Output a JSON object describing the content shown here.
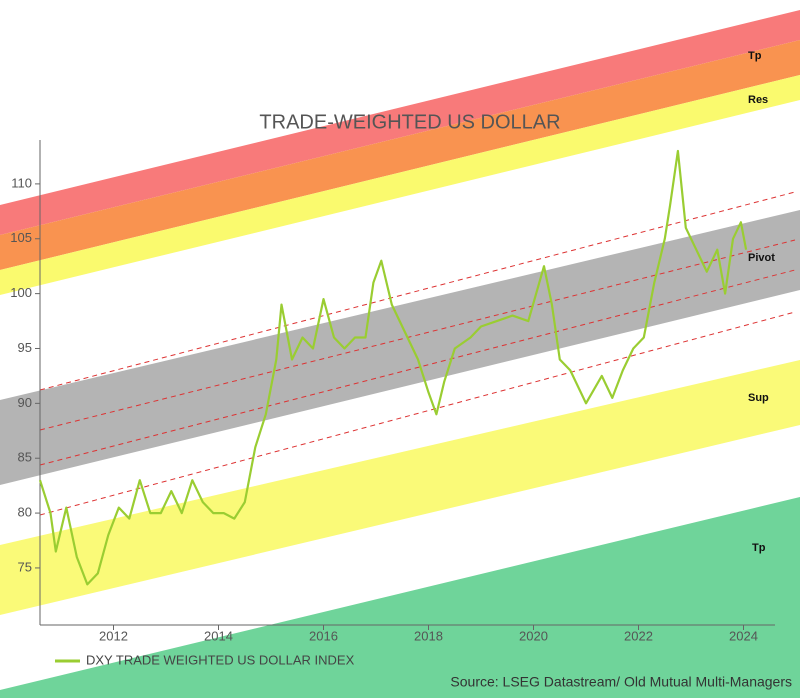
{
  "chart_data": {
    "type": "line",
    "title": "TRADE-WEIGHTED US DOLLAR",
    "source": "Source: LSEG Datastream/ Old Mutual Multi-Managers",
    "band_labels": [
      "Tp",
      "Res",
      "Pivot",
      "Sup",
      "Tp"
    ],
    "xlim": [
      2010.6,
      2024.6
    ],
    "xticks": [
      2012,
      2014,
      2016,
      2018,
      2020,
      2022,
      2024
    ],
    "ylim": [
      69.8,
      114
    ],
    "yticks": [
      75,
      80,
      85,
      90,
      95,
      100,
      105,
      110
    ],
    "x": [
      2010.6,
      2010.8,
      2010.9,
      2011.1,
      2011.3,
      2011.5,
      2011.7,
      2011.9,
      2012.1,
      2012.3,
      2012.5,
      2012.7,
      2012.9,
      2013.1,
      2013.3,
      2013.5,
      2013.7,
      2013.9,
      2014.1,
      2014.3,
      2014.5,
      2014.7,
      2014.9,
      2015.1,
      2015.2,
      2015.4,
      2015.6,
      2015.8,
      2016.0,
      2016.2,
      2016.4,
      2016.6,
      2016.8,
      2016.95,
      2017.1,
      2017.3,
      2017.6,
      2017.8,
      2018.0,
      2018.15,
      2018.3,
      2018.5,
      2018.8,
      2019.0,
      2019.3,
      2019.6,
      2019.9,
      2020.2,
      2020.35,
      2020.5,
      2020.7,
      2020.9,
      2021.0,
      2021.3,
      2021.5,
      2021.7,
      2021.9,
      2022.1,
      2022.3,
      2022.5,
      2022.6,
      2022.75,
      2022.9,
      2023.1,
      2023.3,
      2023.5,
      2023.65,
      2023.8,
      2023.95,
      2024.05
    ],
    "series": [
      {
        "name": "DXY TRADE WEIGHTED US DOLLAR INDEX",
        "color": "#9acd32",
        "values": [
          83,
          80,
          76.5,
          80.5,
          76,
          73.5,
          74.5,
          78,
          80.5,
          79.5,
          83,
          80,
          80,
          82,
          80,
          83,
          81,
          80,
          80,
          79.5,
          81,
          86,
          89,
          94,
          99,
          94,
          96,
          95,
          99.5,
          96,
          95,
          96,
          96,
          101,
          103,
          99,
          96,
          94,
          91,
          89,
          92,
          95,
          96,
          97,
          97.5,
          98,
          97.5,
          102.5,
          99,
          94,
          93,
          91,
          90,
          92.5,
          90.5,
          93,
          95,
          96,
          101,
          105,
          108,
          113,
          106,
          104,
          102,
          104,
          100,
          105,
          106.5,
          104
        ]
      }
    ]
  }
}
